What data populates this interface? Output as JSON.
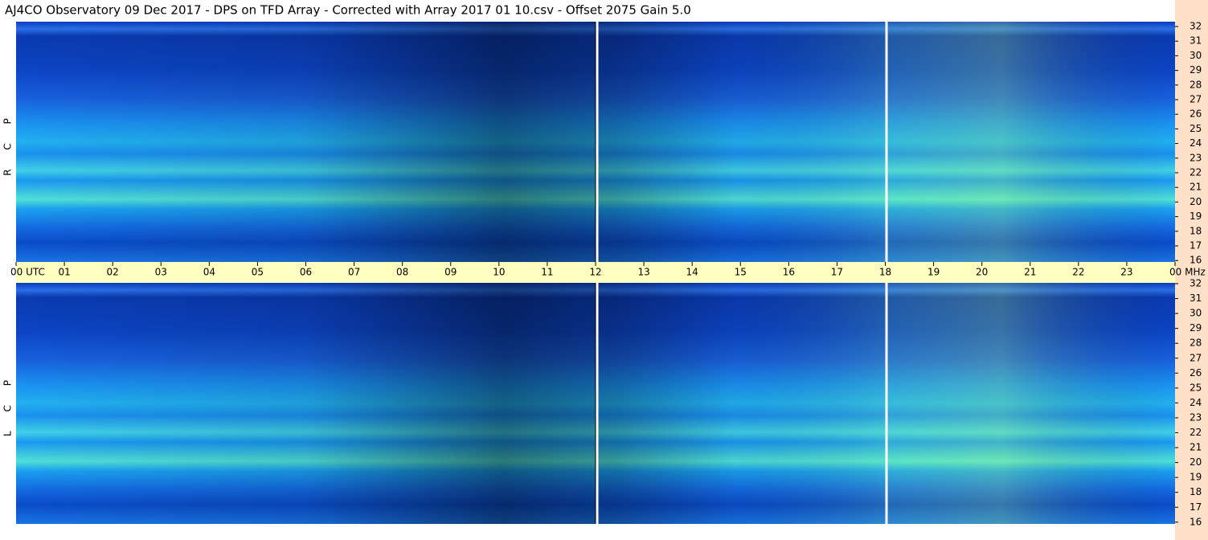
{
  "title": "AJ4CO Observatory  09 Dec 2017  -  DPS on TFD Array  -  Corrected with Array 2017 01 10.csv  -  Offset 2075  Gain 5.0",
  "panels": [
    {
      "label": "R C P",
      "frequencies": [
        "32",
        "31",
        "30",
        "29",
        "28",
        "27",
        "26",
        "25",
        "24",
        "23",
        "22",
        "21",
        "20",
        "19",
        "18",
        "17",
        "16"
      ]
    },
    {
      "label": "L C P",
      "frequencies": [
        "32",
        "31",
        "30",
        "29",
        "28",
        "27",
        "26",
        "25",
        "24",
        "23",
        "22",
        "21",
        "20",
        "19",
        "18",
        "17",
        "16"
      ]
    }
  ],
  "time_axis": [
    "00 UTC",
    "01",
    "02",
    "03",
    "04",
    "05",
    "06",
    "07",
    "08",
    "09",
    "10",
    "11",
    "12",
    "13",
    "14",
    "15",
    "16",
    "17",
    "18",
    "19",
    "20",
    "21",
    "22",
    "23",
    "00 MHz"
  ]
}
